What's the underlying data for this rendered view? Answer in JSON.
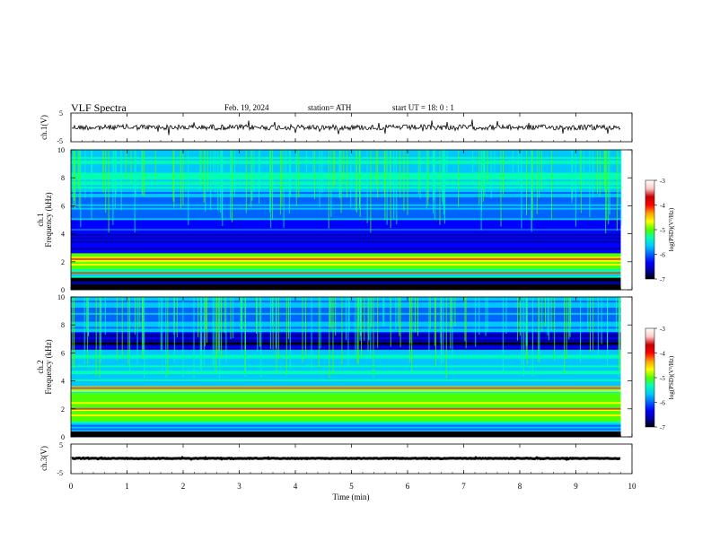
{
  "header": {
    "title": "VLF  Spectra",
    "date": "Feb. 19, 2024",
    "station": "station= ATH",
    "start": "start  UT  =    18: 0   : 1"
  },
  "colorbar": {
    "colors": [
      "#000000",
      "#0000a0",
      "#0000ff",
      "#0064ff",
      "#00c8ff",
      "#00ffb4",
      "#50ff00",
      "#ffff00",
      "#ffa000",
      "#ff0000",
      "#c80000",
      "#ffc8c8",
      "#ffffff"
    ]
  },
  "chart_data": [
    {
      "type": "line",
      "ylabel": "ch.1(V)",
      "ylim": [
        -5,
        5
      ],
      "ticks": [
        "5",
        "-5"
      ],
      "xlim": [
        0,
        10
      ],
      "mean_level": 0,
      "trace_end_min": 9.8,
      "series": [
        {
          "color": "#000000"
        }
      ]
    },
    {
      "type": "heatmap",
      "ylabel": [
        "ch.1",
        "Frequency (kHz)"
      ],
      "ylim": [
        0,
        10
      ],
      "yticks": [
        "0",
        "2",
        "4",
        "6",
        "8",
        "10"
      ],
      "xlim": [
        0,
        10
      ],
      "data_end_min": 9.8,
      "colorbar": {
        "label": "log(PSD)(V²/Hz)",
        "range": [
          -7,
          -3
        ],
        "ticks": [
          "-3",
          "-4",
          "-5",
          "-6",
          "-7"
        ]
      }
    },
    {
      "type": "heatmap",
      "ylabel": [
        "ch.2",
        "Frequency (kHz)"
      ],
      "ylim": [
        0,
        10
      ],
      "yticks": [
        "0",
        "2",
        "4",
        "6",
        "8",
        "10"
      ],
      "xlim": [
        0,
        10
      ],
      "data_end_min": 9.8,
      "colorbar": {
        "label": "log(PSD)(V²/Hz)",
        "range": [
          -7,
          -3
        ],
        "ticks": [
          "-3",
          "-4",
          "-5",
          "-6",
          "-7"
        ]
      }
    },
    {
      "type": "line",
      "ylabel": "ch.3(V)",
      "ylim": [
        -5,
        5
      ],
      "ticks": [
        "5",
        "-5"
      ],
      "xlim": [
        0,
        10
      ],
      "xlabel": "Time  (min)",
      "xticks": [
        "0",
        "1",
        "2",
        "3",
        "4",
        "5",
        "6",
        "7",
        "8",
        "9",
        "10"
      ],
      "mean_level": -2,
      "trace_end_min": 9.8,
      "series": [
        {
          "color": "#000000"
        }
      ]
    }
  ]
}
